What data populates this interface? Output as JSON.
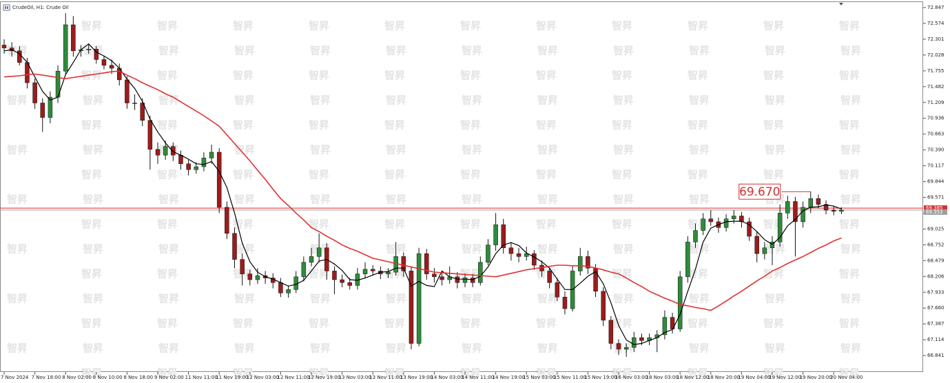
{
  "chart_data": {
    "type": "candlestick",
    "title": "CrudeOil, H1: Crude Oil",
    "watermark": "智昇",
    "up_color": "#2e8b3a",
    "down_color": "#9b1c1c",
    "ylim": [
      66.557,
      72.954
    ],
    "yticks": [
      72.847,
      72.574,
      72.301,
      72.028,
      71.755,
      71.482,
      71.209,
      70.936,
      70.663,
      {
        "value": 70.39,
        "label": "70.390"
      },
      70.117,
      69.844,
      69.571,
      69.298,
      69.025,
      68.752,
      68.479,
      68.206,
      67.933,
      {
        "value": 67.66,
        "label": "67.660"
      },
      67.387,
      67.114,
      66.841
    ],
    "categories": [
      "7 Nov 2024",
      null,
      null,
      null,
      "7 Nov 18:00",
      null,
      null,
      null,
      "8 Nov 02:00",
      null,
      null,
      null,
      "8 Nov 10:00",
      null,
      null,
      null,
      "8 Nov 18:00",
      null,
      null,
      null,
      "9 Nov 02:00",
      null,
      null,
      null,
      "11 Nov 11:00",
      null,
      null,
      null,
      "11 Nov 19:00",
      null,
      null,
      null,
      "12 Nov 03:00",
      null,
      null,
      null,
      "12 Nov 11:00",
      null,
      null,
      null,
      "12 Nov 19:00",
      null,
      null,
      null,
      "13 Nov 03:00",
      null,
      null,
      null,
      "13 Nov 11:00",
      null,
      null,
      null,
      "13 Nov 19:00",
      null,
      null,
      null,
      "14 Nov 03:00",
      null,
      null,
      null,
      "14 Nov 11:00",
      null,
      null,
      null,
      "14 Nov 19:00",
      null,
      null,
      null,
      "15 Nov 03:00",
      null,
      null,
      null,
      "15 Nov 11:00",
      null,
      null,
      null,
      "15 Nov 19:00",
      null,
      null,
      null,
      "16 Nov 03:00",
      null,
      null,
      null,
      "18 Nov 03:00",
      null,
      null,
      null,
      "18 Nov 12:00",
      null,
      null,
      null,
      "18 Nov 20:00",
      null,
      null,
      null,
      "19 Nov 04:00",
      null,
      null,
      null,
      "19 Nov 12:00",
      null,
      null,
      null,
      "19 Nov 20:00",
      null,
      null,
      null,
      "20 Nov 04:00",
      null
    ],
    "ohlc": [
      [
        72.2,
        72.3,
        72.05,
        72.15
      ],
      [
        72.15,
        72.25,
        72.0,
        72.1
      ],
      [
        72.1,
        72.18,
        71.85,
        71.9
      ],
      [
        71.9,
        71.98,
        71.45,
        71.55
      ],
      [
        71.55,
        71.62,
        71.1,
        71.2
      ],
      [
        71.2,
        71.28,
        70.7,
        70.95
      ],
      [
        70.95,
        71.4,
        70.85,
        71.3
      ],
      [
        71.3,
        71.85,
        71.2,
        71.75
      ],
      [
        71.75,
        72.75,
        71.7,
        72.55
      ],
      [
        72.55,
        72.7,
        72.0,
        72.1
      ],
      [
        72.1,
        72.2,
        72.0,
        72.12
      ],
      [
        72.12,
        72.22,
        72.05,
        72.13
      ],
      [
        72.13,
        72.18,
        71.88,
        71.95
      ],
      [
        71.95,
        72.02,
        71.78,
        71.85
      ],
      [
        71.85,
        71.95,
        71.7,
        71.8
      ],
      [
        71.8,
        71.88,
        71.5,
        71.6
      ],
      [
        71.6,
        71.66,
        71.1,
        71.2
      ],
      [
        71.2,
        71.35,
        71.08,
        71.2
      ],
      [
        71.2,
        71.28,
        70.8,
        70.9
      ],
      [
        70.9,
        70.98,
        70.05,
        70.4
      ],
      [
        70.4,
        70.52,
        70.15,
        70.3
      ],
      [
        70.3,
        70.55,
        70.22,
        70.45
      ],
      [
        70.45,
        70.52,
        70.2,
        70.3
      ],
      [
        70.3,
        70.38,
        70.05,
        70.15
      ],
      [
        70.15,
        70.22,
        69.95,
        70.05
      ],
      [
        70.05,
        70.18,
        69.98,
        70.1
      ],
      [
        70.1,
        70.35,
        70.02,
        70.25
      ],
      [
        70.25,
        70.48,
        70.15,
        70.35
      ],
      [
        70.35,
        70.42,
        69.3,
        69.4
      ],
      [
        69.4,
        69.5,
        68.85,
        68.95
      ],
      [
        68.95,
        69.05,
        68.35,
        68.5
      ],
      [
        68.5,
        68.6,
        68.05,
        68.25
      ],
      [
        68.25,
        68.32,
        68.05,
        68.15
      ],
      [
        68.15,
        68.35,
        68.08,
        68.22
      ],
      [
        68.22,
        68.3,
        68.08,
        68.18
      ],
      [
        68.18,
        68.26,
        68.0,
        68.1
      ],
      [
        68.1,
        68.18,
        67.85,
        67.92
      ],
      [
        67.92,
        68.05,
        67.84,
        67.98
      ],
      [
        67.98,
        68.3,
        67.92,
        68.2
      ],
      [
        68.2,
        68.55,
        68.12,
        68.45
      ],
      [
        68.45,
        68.7,
        68.38,
        68.55
      ],
      [
        68.55,
        68.95,
        68.45,
        68.7
      ],
      [
        68.7,
        68.78,
        68.15,
        68.3
      ],
      [
        68.3,
        68.38,
        67.9,
        68.15
      ],
      [
        68.15,
        68.24,
        68.02,
        68.1
      ],
      [
        68.1,
        68.18,
        67.98,
        68.05
      ],
      [
        68.05,
        68.35,
        67.98,
        68.25
      ],
      [
        68.25,
        68.45,
        68.18,
        68.33
      ],
      [
        68.33,
        68.4,
        68.22,
        68.3
      ],
      [
        68.3,
        68.38,
        68.16,
        68.25
      ],
      [
        68.25,
        68.35,
        68.18,
        68.28
      ],
      [
        68.28,
        68.8,
        68.22,
        68.55
      ],
      [
        68.55,
        68.62,
        68.2,
        68.3
      ],
      [
        68.3,
        68.38,
        66.95,
        67.05
      ],
      [
        67.05,
        68.7,
        67.0,
        68.6
      ],
      [
        68.6,
        68.68,
        68.15,
        68.25
      ],
      [
        68.25,
        68.35,
        68.1,
        68.2
      ],
      [
        68.2,
        68.3,
        68.05,
        68.15
      ],
      [
        68.15,
        68.38,
        68.08,
        68.2
      ],
      [
        68.2,
        68.28,
        68.0,
        68.1
      ],
      [
        68.1,
        68.26,
        68.02,
        68.18
      ],
      [
        68.18,
        68.25,
        68.02,
        68.1
      ],
      [
        68.1,
        68.55,
        68.05,
        68.45
      ],
      [
        68.45,
        68.85,
        68.4,
        68.75
      ],
      [
        68.75,
        69.3,
        68.65,
        69.1
      ],
      [
        69.1,
        69.2,
        68.6,
        68.7
      ],
      [
        68.7,
        68.8,
        68.48,
        68.6
      ],
      [
        68.6,
        68.7,
        68.45,
        68.55
      ],
      [
        68.55,
        68.72,
        68.48,
        68.6
      ],
      [
        68.6,
        68.66,
        68.32,
        68.4
      ],
      [
        68.4,
        68.48,
        68.2,
        68.3
      ],
      [
        68.3,
        68.36,
        68.0,
        68.1
      ],
      [
        68.1,
        68.18,
        67.78,
        67.85
      ],
      [
        67.85,
        67.95,
        67.55,
        67.65
      ],
      [
        67.65,
        68.4,
        67.6,
        68.3
      ],
      [
        68.3,
        68.7,
        68.22,
        68.55
      ],
      [
        68.55,
        68.65,
        68.25,
        68.35
      ],
      [
        68.35,
        68.42,
        67.85,
        67.95
      ],
      [
        67.95,
        68.02,
        67.35,
        67.45
      ],
      [
        67.45,
        67.52,
        66.95,
        67.05
      ],
      [
        67.05,
        67.12,
        66.85,
        66.95
      ],
      [
        66.95,
        67.05,
        66.82,
        66.98
      ],
      [
        66.98,
        67.25,
        66.9,
        67.15
      ],
      [
        67.15,
        67.22,
        67.02,
        67.1
      ],
      [
        67.1,
        67.22,
        67.02,
        67.15
      ],
      [
        67.15,
        67.28,
        66.9,
        67.2
      ],
      [
        67.2,
        67.62,
        67.12,
        67.5
      ],
      [
        67.5,
        67.58,
        67.22,
        67.3
      ],
      [
        67.3,
        68.3,
        67.25,
        68.2
      ],
      [
        68.2,
        68.9,
        68.1,
        68.8
      ],
      [
        68.8,
        69.12,
        68.7,
        69.0
      ],
      [
        69.0,
        69.3,
        68.92,
        69.2
      ],
      [
        69.2,
        69.35,
        69.08,
        69.15
      ],
      [
        69.15,
        69.22,
        68.96,
        69.05
      ],
      [
        69.05,
        69.28,
        68.98,
        69.2
      ],
      [
        69.2,
        69.35,
        69.12,
        69.25
      ],
      [
        69.25,
        69.32,
        69.05,
        69.15
      ],
      [
        69.15,
        69.22,
        68.82,
        68.9
      ],
      [
        68.9,
        68.98,
        68.45,
        68.6
      ],
      [
        68.6,
        68.8,
        68.5,
        68.7
      ],
      [
        68.7,
        68.9,
        68.4,
        68.8
      ],
      [
        68.8,
        69.45,
        68.72,
        69.3
      ],
      [
        69.3,
        69.6,
        69.2,
        69.5
      ],
      [
        69.5,
        69.58,
        68.55,
        69.15
      ],
      [
        69.15,
        69.5,
        69.05,
        69.4
      ],
      [
        69.4,
        69.67,
        69.3,
        69.55
      ],
      [
        69.55,
        69.62,
        69.38,
        69.45
      ],
      [
        69.45,
        69.52,
        69.28,
        69.35
      ],
      [
        69.35,
        69.42,
        69.26,
        69.33
      ],
      [
        69.33,
        69.4,
        69.28,
        69.35
      ]
    ],
    "series": [
      {
        "color": "#000000",
        "values": [
          72.1,
          72.12,
          72.05,
          71.9,
          71.65,
          71.4,
          71.25,
          71.3,
          71.69,
          71.9,
          72.12,
          72.22,
          72.08,
          72.01,
          71.93,
          71.8,
          71.61,
          71.45,
          71.23,
          70.92,
          70.7,
          70.51,
          70.36,
          70.3,
          70.23,
          70.15,
          70.14,
          70.19,
          70.02,
          69.74,
          69.3,
          68.78,
          68.46,
          68.28,
          68.2,
          68.16,
          68.1,
          68.04,
          68.07,
          68.14,
          68.3,
          68.47,
          68.5,
          68.42,
          68.31,
          68.15,
          68.14,
          68.18,
          68.23,
          68.28,
          68.29,
          68.35,
          68.35,
          68.04,
          68.12,
          68.05,
          68.03,
          68.3,
          68.2,
          68.16,
          68.16,
          68.15,
          68.21,
          68.37,
          68.6,
          68.75,
          68.79,
          68.74,
          68.61,
          68.54,
          68.46,
          68.35,
          68.16,
          67.98,
          67.98,
          68.09,
          68.21,
          68.29,
          68.08,
          67.75,
          67.36,
          67.11,
          67.03,
          67.05,
          67.1,
          67.15,
          67.24,
          67.29,
          67.55,
          67.95,
          68.33,
          68.8,
          69.04,
          69.1,
          69.15,
          69.16,
          69.16,
          69.1,
          68.98,
          68.84,
          68.76,
          68.88,
          69.08,
          69.19,
          69.34,
          69.4,
          69.41,
          69.44,
          69.42,
          69.37
        ]
      },
      {
        "color": "#e03030",
        "values": [
          71.65,
          71.66,
          71.67,
          71.69,
          71.7,
          71.68,
          71.66,
          71.64,
          71.62,
          71.64,
          71.66,
          71.68,
          71.7,
          71.72,
          71.74,
          71.75,
          71.68,
          71.62,
          71.55,
          71.49,
          71.43,
          71.36,
          71.3,
          71.22,
          71.14,
          71.06,
          70.98,
          70.89,
          70.8,
          70.65,
          70.5,
          70.35,
          70.2,
          70.04,
          69.88,
          69.71,
          69.55,
          69.43,
          69.3,
          69.18,
          69.05,
          68.98,
          68.9,
          68.83,
          68.75,
          68.69,
          68.64,
          68.58,
          68.52,
          68.49,
          68.46,
          68.43,
          68.4,
          68.37,
          68.34,
          68.31,
          68.28,
          68.27,
          68.26,
          68.25,
          68.24,
          68.23,
          68.22,
          68.21,
          68.2,
          68.23,
          68.26,
          68.29,
          68.32,
          68.34,
          68.36,
          68.38,
          68.4,
          68.4,
          68.39,
          68.39,
          68.38,
          68.35,
          68.32,
          68.28,
          68.25,
          68.18,
          68.1,
          68.03,
          67.95,
          67.89,
          67.83,
          67.78,
          67.72,
          67.7,
          67.67,
          67.65,
          67.62,
          67.7,
          67.78,
          67.87,
          67.95,
          68.04,
          68.13,
          68.21,
          68.3,
          68.36,
          68.43,
          68.49,
          68.55,
          68.62,
          68.69,
          68.75,
          68.82,
          68.87
        ]
      }
    ],
    "price_lines": [
      {
        "value": 69.385,
        "color": "#d32f2f"
      },
      {
        "value": 69.353,
        "color": "#9e9e9e"
      }
    ],
    "annotations": [
      {
        "label": "69.670",
        "value": 69.67,
        "color": "#d32f2f"
      }
    ]
  }
}
